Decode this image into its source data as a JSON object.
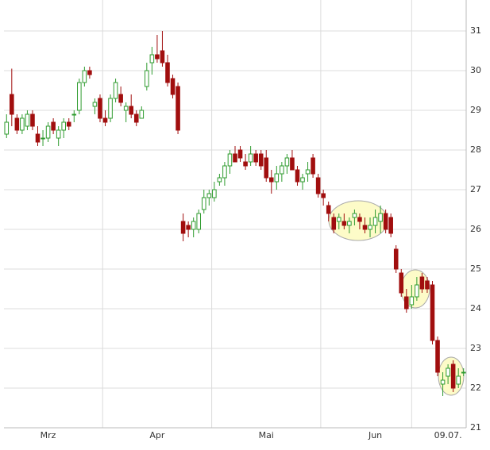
{
  "chart_data": {
    "type": "candlestick",
    "categories": [
      null,
      null,
      null,
      null,
      null,
      null,
      null,
      null,
      "Mrz",
      null,
      null,
      null,
      null,
      null,
      null,
      null,
      null,
      null,
      null,
      null,
      null,
      null,
      null,
      null,
      null,
      null,
      null,
      null,
      null,
      "Apr",
      null,
      null,
      null,
      null,
      null,
      null,
      null,
      null,
      null,
      null,
      null,
      null,
      null,
      null,
      null,
      null,
      null,
      null,
      null,
      null,
      "Mai",
      null,
      null,
      null,
      null,
      null,
      null,
      null,
      null,
      null,
      null,
      null,
      null,
      null,
      null,
      null,
      null,
      null,
      null,
      null,
      null,
      "Jun",
      null,
      null,
      null,
      null,
      null,
      null,
      null,
      null,
      null,
      null,
      null,
      null,
      null,
      "09.07.",
      null,
      null,
      null
    ],
    "open": [
      28.4,
      29.4,
      28.8,
      28.5,
      28.6,
      28.9,
      28.4,
      28.3,
      28.3,
      28.7,
      28.3,
      28.5,
      28.7,
      28.9,
      29.0,
      29.7,
      30.0,
      29.1,
      29.3,
      28.8,
      28.8,
      29.3,
      29.4,
      29.0,
      29.1,
      28.9,
      28.8,
      29.6,
      30.2,
      30.4,
      30.5,
      30.2,
      29.8,
      29.6,
      26.2,
      26.1,
      26.0,
      26.0,
      26.5,
      26.8,
      26.8,
      27.2,
      27.3,
      27.6,
      27.9,
      28.0,
      27.7,
      27.7,
      27.9,
      27.9,
      27.8,
      27.3,
      27.2,
      27.4,
      27.6,
      27.8,
      27.5,
      27.2,
      27.4,
      27.8,
      27.3,
      26.9,
      26.6,
      26.3,
      26.2,
      26.2,
      26.1,
      26.3,
      26.3,
      26.1,
      26.0,
      26.1,
      26.2,
      26.4,
      26.3,
      25.5,
      24.9,
      24.3,
      24.1,
      24.3,
      24.8,
      24.7,
      24.6,
      23.2,
      22.1,
      22.3,
      22.6,
      22.1,
      22.4
    ],
    "high": [
      28.9,
      30.05,
      28.9,
      28.9,
      29.0,
      29.0,
      28.6,
      28.5,
      28.7,
      28.8,
      28.6,
      28.8,
      28.8,
      29.0,
      29.8,
      30.1,
      30.1,
      29.3,
      29.4,
      29.0,
      29.4,
      29.8,
      29.6,
      29.2,
      29.4,
      29.0,
      29.1,
      30.2,
      30.6,
      30.9,
      31.0,
      30.4,
      29.9,
      29.7,
      26.4,
      26.2,
      26.3,
      26.5,
      27.0,
      27.0,
      27.2,
      27.4,
      27.7,
      28.0,
      28.1,
      28.1,
      27.9,
      28.1,
      28.0,
      28.0,
      28.0,
      27.5,
      27.6,
      27.7,
      27.9,
      28.0,
      27.6,
      27.4,
      27.7,
      27.9,
      27.4,
      27.0,
      26.7,
      26.4,
      26.4,
      26.4,
      26.3,
      26.5,
      26.4,
      26.3,
      26.3,
      26.5,
      26.6,
      26.5,
      26.4,
      25.6,
      25.0,
      24.5,
      24.6,
      24.8,
      24.9,
      24.8,
      24.7,
      23.3,
      22.4,
      22.6,
      22.7,
      22.5,
      22.5
    ],
    "low": [
      28.3,
      28.6,
      28.4,
      28.4,
      28.5,
      28.5,
      28.1,
      28.1,
      28.2,
      28.4,
      28.1,
      28.3,
      28.5,
      28.7,
      28.9,
      29.6,
      29.8,
      28.9,
      28.7,
      28.6,
      28.7,
      29.2,
      29.1,
      28.7,
      28.8,
      28.6,
      28.8,
      29.5,
      29.9,
      30.2,
      30.1,
      29.6,
      29.3,
      28.4,
      25.7,
      25.8,
      25.8,
      25.9,
      26.4,
      26.6,
      26.7,
      27.1,
      27.1,
      27.4,
      27.7,
      27.7,
      27.5,
      27.6,
      27.6,
      27.5,
      27.2,
      26.9,
      27.0,
      27.2,
      27.4,
      27.5,
      27.1,
      27.0,
      27.2,
      27.3,
      26.8,
      26.6,
      26.2,
      25.9,
      26.0,
      26.0,
      25.9,
      26.1,
      26.0,
      25.9,
      25.8,
      25.9,
      25.9,
      25.9,
      25.8,
      24.9,
      24.3,
      23.9,
      24.0,
      24.2,
      24.4,
      24.4,
      23.1,
      22.3,
      21.8,
      22.1,
      21.9,
      22.0,
      22.3
    ],
    "close": [
      28.7,
      28.9,
      28.5,
      28.8,
      28.9,
      28.6,
      28.2,
      28.3,
      28.6,
      28.5,
      28.5,
      28.7,
      28.6,
      28.9,
      29.7,
      30.0,
      29.9,
      29.2,
      28.8,
      28.7,
      29.3,
      29.7,
      29.2,
      29.1,
      28.9,
      28.7,
      29.0,
      30.0,
      30.4,
      30.3,
      30.2,
      29.7,
      29.4,
      28.5,
      25.9,
      26.0,
      26.2,
      26.4,
      26.8,
      26.9,
      27.0,
      27.3,
      27.6,
      27.9,
      27.7,
      27.8,
      27.6,
      27.9,
      27.7,
      27.6,
      27.3,
      27.2,
      27.4,
      27.6,
      27.8,
      27.5,
      27.2,
      27.3,
      27.5,
      27.4,
      26.9,
      26.8,
      26.4,
      26.0,
      26.3,
      26.1,
      26.2,
      26.4,
      26.2,
      26.0,
      26.1,
      26.3,
      26.4,
      26.0,
      25.9,
      25.0,
      24.4,
      24.0,
      24.3,
      24.6,
      24.5,
      24.5,
      23.2,
      22.4,
      22.2,
      22.5,
      22.0,
      22.3,
      22.4
    ],
    "up_color": "#2e9b2e",
    "down_color": "#a10e0e",
    "ylim": [
      21,
      31.78
    ],
    "yticks": [
      21,
      22,
      23,
      24,
      25,
      26,
      27,
      28,
      29,
      30,
      31
    ],
    "grid": true
  }
}
